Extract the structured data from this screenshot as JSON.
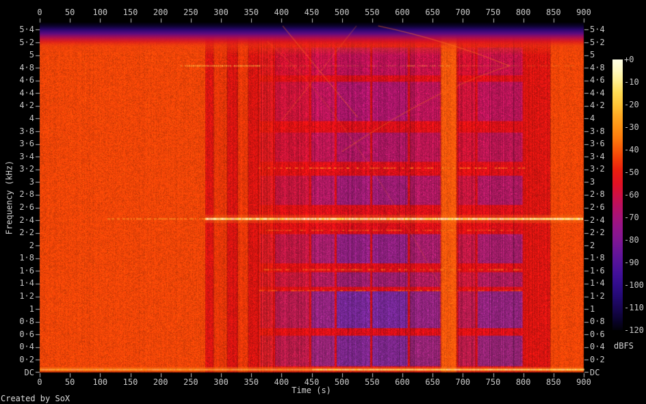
{
  "meta": {
    "credit": "Created by SoX"
  },
  "chart_data": {
    "type": "heatmap",
    "title": "",
    "xlabel": "Time (s)",
    "ylabel": "Frequency (kHz)",
    "colorbar_label": "dBFS",
    "xlim": [
      0,
      900
    ],
    "f_top_khz": 5.5125,
    "x_tick_values": [
      0,
      50,
      100,
      150,
      200,
      250,
      300,
      350,
      400,
      450,
      500,
      550,
      600,
      650,
      700,
      750,
      800,
      850,
      900
    ],
    "x_tick_labels": [
      "0",
      "50",
      "100",
      "150",
      "200",
      "250",
      "300",
      "350",
      "400",
      "450",
      "500",
      "550",
      "600",
      "650",
      "700",
      "750",
      "800",
      "850",
      "900"
    ],
    "y_tick_values": [
      0,
      0.2,
      0.4,
      0.6,
      0.8,
      1,
      1.2,
      1.4,
      1.6,
      1.8,
      2,
      2.2,
      2.4,
      2.6,
      2.8,
      3,
      3.2,
      3.4,
      3.6,
      3.8,
      4,
      4.2,
      4.4,
      4.6,
      4.8,
      5,
      5.2,
      5.4
    ],
    "y_tick_labels": [
      "DC",
      "0·2",
      "0·4",
      "0·6",
      "0·8",
      "1",
      "1·2",
      "1·4",
      "1·6",
      "1·8",
      "2",
      "2·2",
      "2·4",
      "2·6",
      "2·8",
      "3",
      "3·2",
      "3·4",
      "3·6",
      "3·8",
      "4",
      "4·2",
      "4·4",
      "4·6",
      "4·8",
      "5",
      "5·2",
      "5·4"
    ],
    "colorbar_ticks": [
      "+0",
      "-10",
      "-20",
      "-30",
      "-40",
      "-50",
      "-60",
      "-70",
      "-80",
      "-90",
      "-100",
      "-110",
      "-120"
    ],
    "colorbar_range_db": [
      0,
      -120
    ],
    "grid": false,
    "colors": {
      "page_background": "#000000",
      "tick_text": "#c9c9c9",
      "tick_mark": "#c4c4c4",
      "purple_low_freq": "#5c2fb0",
      "purple_high_freq": "#b61160",
      "tone_line_core": "#fff0a8",
      "tone_line_glow": "#ff8c14"
    },
    "palette": [
      [
        0.0,
        "#ffffe6"
      ],
      [
        0.04,
        "#fff9c0"
      ],
      [
        0.08,
        "#ffee8e"
      ],
      [
        0.12,
        "#ffdc55"
      ],
      [
        0.17,
        "#ffc335"
      ],
      [
        0.21,
        "#ffa822"
      ],
      [
        0.25,
        "#ff9314"
      ],
      [
        0.29,
        "#fd7b0d"
      ],
      [
        0.33,
        "#f85c09"
      ],
      [
        0.37,
        "#f23c08"
      ],
      [
        0.41,
        "#ea1e0e"
      ],
      [
        0.46,
        "#e11124"
      ],
      [
        0.5,
        "#d01043"
      ],
      [
        0.54,
        "#bb1060"
      ],
      [
        0.58,
        "#a81378"
      ],
      [
        0.62,
        "#95158a"
      ],
      [
        0.67,
        "#7f1694"
      ],
      [
        0.71,
        "#691599"
      ],
      [
        0.75,
        "#55139b"
      ],
      [
        0.79,
        "#431099"
      ],
      [
        0.83,
        "#320d8d"
      ],
      [
        0.87,
        "#250a77"
      ],
      [
        0.92,
        "#180652"
      ],
      [
        0.96,
        "#0b0330"
      ],
      [
        1.0,
        "#020108"
      ]
    ],
    "top_rolloff": [
      [
        0.0,
        "rgba(2,0,8,1)"
      ],
      [
        0.1,
        "rgba(12,3,44,1)"
      ],
      [
        0.22,
        "rgba(44,7,112,1)"
      ],
      [
        0.34,
        "rgba(96,11,128,1)"
      ],
      [
        0.46,
        "rgba(168,13,84,0.95)"
      ],
      [
        0.58,
        "rgba(218,20,32,0.8)"
      ],
      [
        0.72,
        "rgba(238,62,14,0.45)"
      ],
      [
        1.0,
        "rgba(240,68,10,0)"
      ]
    ],
    "band_styles": {
      "quiet": {
        "color": "#f14407",
        "jitter": 0.05,
        "purple": 0
      },
      "medium": {
        "color": "#e73608",
        "jitter": 0.07,
        "purple": 0
      },
      "dark": {
        "color": "#d31410",
        "jitter": 0.09,
        "purple": 0
      },
      "striped": {
        "color": "#da190e",
        "jitter": 0.17,
        "purple": 0.18
      },
      "bright": {
        "color": "#f7560b",
        "jitter": 0.06,
        "purple": 0
      },
      "dense1": {
        "color": "#dc1113",
        "jitter": 0.13,
        "purple": 0.4
      },
      "dense2": {
        "color": "#d91017",
        "jitter": 0.12,
        "purple": 0.72
      },
      "dense3": {
        "color": "#d60f19",
        "jitter": 0.1,
        "purple": 0.92
      }
    },
    "bands": [
      {
        "t0": 0,
        "t1": 274,
        "kind": "quiet"
      },
      {
        "t0": 274,
        "t1": 288,
        "kind": "dark"
      },
      {
        "t0": 288,
        "t1": 310,
        "kind": "medium"
      },
      {
        "t0": 310,
        "t1": 328,
        "kind": "dark"
      },
      {
        "t0": 328,
        "t1": 345,
        "kind": "medium"
      },
      {
        "t0": 345,
        "t1": 362,
        "kind": "dark"
      },
      {
        "t0": 362,
        "t1": 387,
        "kind": "striped"
      },
      {
        "t0": 387,
        "t1": 447,
        "kind": "dense1"
      },
      {
        "t0": 447,
        "t1": 489,
        "kind": "dense2"
      },
      {
        "t0": 489,
        "t1": 548,
        "kind": "dense3"
      },
      {
        "t0": 548,
        "t1": 610,
        "kind": "dense3"
      },
      {
        "t0": 610,
        "t1": 664,
        "kind": "dense2"
      },
      {
        "t0": 664,
        "t1": 690,
        "kind": "bright"
      },
      {
        "t0": 690,
        "t1": 722,
        "kind": "dense1"
      },
      {
        "t0": 722,
        "t1": 800,
        "kind": "dense2"
      },
      {
        "t0": 800,
        "t1": 845,
        "kind": "dark"
      },
      {
        "t0": 845,
        "t1": 900,
        "kind": "quiet"
      }
    ],
    "purple_rows": [
      {
        "f0": 0.1,
        "f1": 0.58,
        "a": 0.85
      },
      {
        "f0": 0.7,
        "f1": 1.28,
        "a": 1.0
      },
      {
        "f0": 1.35,
        "f1": 1.58,
        "a": 0.7
      },
      {
        "f0": 1.72,
        "f1": 2.18,
        "a": 0.9
      },
      {
        "f0": 2.64,
        "f1": 3.1,
        "a": 0.9
      },
      {
        "f0": 3.32,
        "f1": 3.78,
        "a": 0.8
      },
      {
        "f0": 3.96,
        "f1": 4.58,
        "a": 1.0
      },
      {
        "f0": 4.68,
        "f1": 5.12,
        "a": 0.85
      }
    ],
    "dash_rows": [
      {
        "f": 3.22,
        "alpha": 0.8
      },
      {
        "f": 2.24,
        "alpha": 0.5
      },
      {
        "f": 1.62,
        "alpha": 0.7
      },
      {
        "f": 1.29,
        "alpha": 0.5
      }
    ],
    "tones": [
      {
        "f": 2.42,
        "segments": [
          {
            "t0": 112,
            "t1": 274,
            "alpha": 0.5,
            "h": 2
          },
          {
            "t0": 274,
            "t1": 898,
            "alpha": 1.0,
            "h": 3
          }
        ]
      },
      {
        "f": 4.83,
        "segments": [
          {
            "t0": 226,
            "t1": 362,
            "alpha": 0.85,
            "h": 2
          },
          {
            "t0": 362,
            "t1": 608,
            "alpha": 0.3,
            "h": 1.5
          },
          {
            "t0": 608,
            "t1": 688,
            "alpha": 0.6,
            "h": 1.5
          },
          {
            "t0": 688,
            "t1": 884,
            "alpha": 0.28,
            "h": 1.5
          }
        ]
      }
    ],
    "dc_line": {
      "f": 0.05,
      "bright_from_t": 450
    },
    "sweeps": [
      {
        "a": 0.45,
        "p": [
          [
            402,
            5.46
          ],
          [
            526,
            4.02
          ]
        ]
      },
      {
        "a": 0.3,
        "p": [
          [
            524,
            5.46
          ],
          [
            401,
            3.98
          ]
        ]
      },
      {
        "a": 0.5,
        "p": [
          [
            560,
            5.46
          ],
          [
            670,
            5.24
          ],
          [
            777,
            4.83
          ]
        ]
      },
      {
        "a": 0.4,
        "p": [
          [
            500,
            3.48
          ],
          [
            659,
            4.49
          ],
          [
            777,
            4.83
          ]
        ]
      },
      {
        "a": 0.22,
        "p": [
          [
            376,
            5.22
          ],
          [
            500,
            4.25
          ],
          [
            670,
            1.24
          ]
        ]
      },
      {
        "a": 0.15,
        "p": [
          [
            2,
            3.9
          ],
          [
            106,
            3.39
          ]
        ]
      }
    ]
  }
}
